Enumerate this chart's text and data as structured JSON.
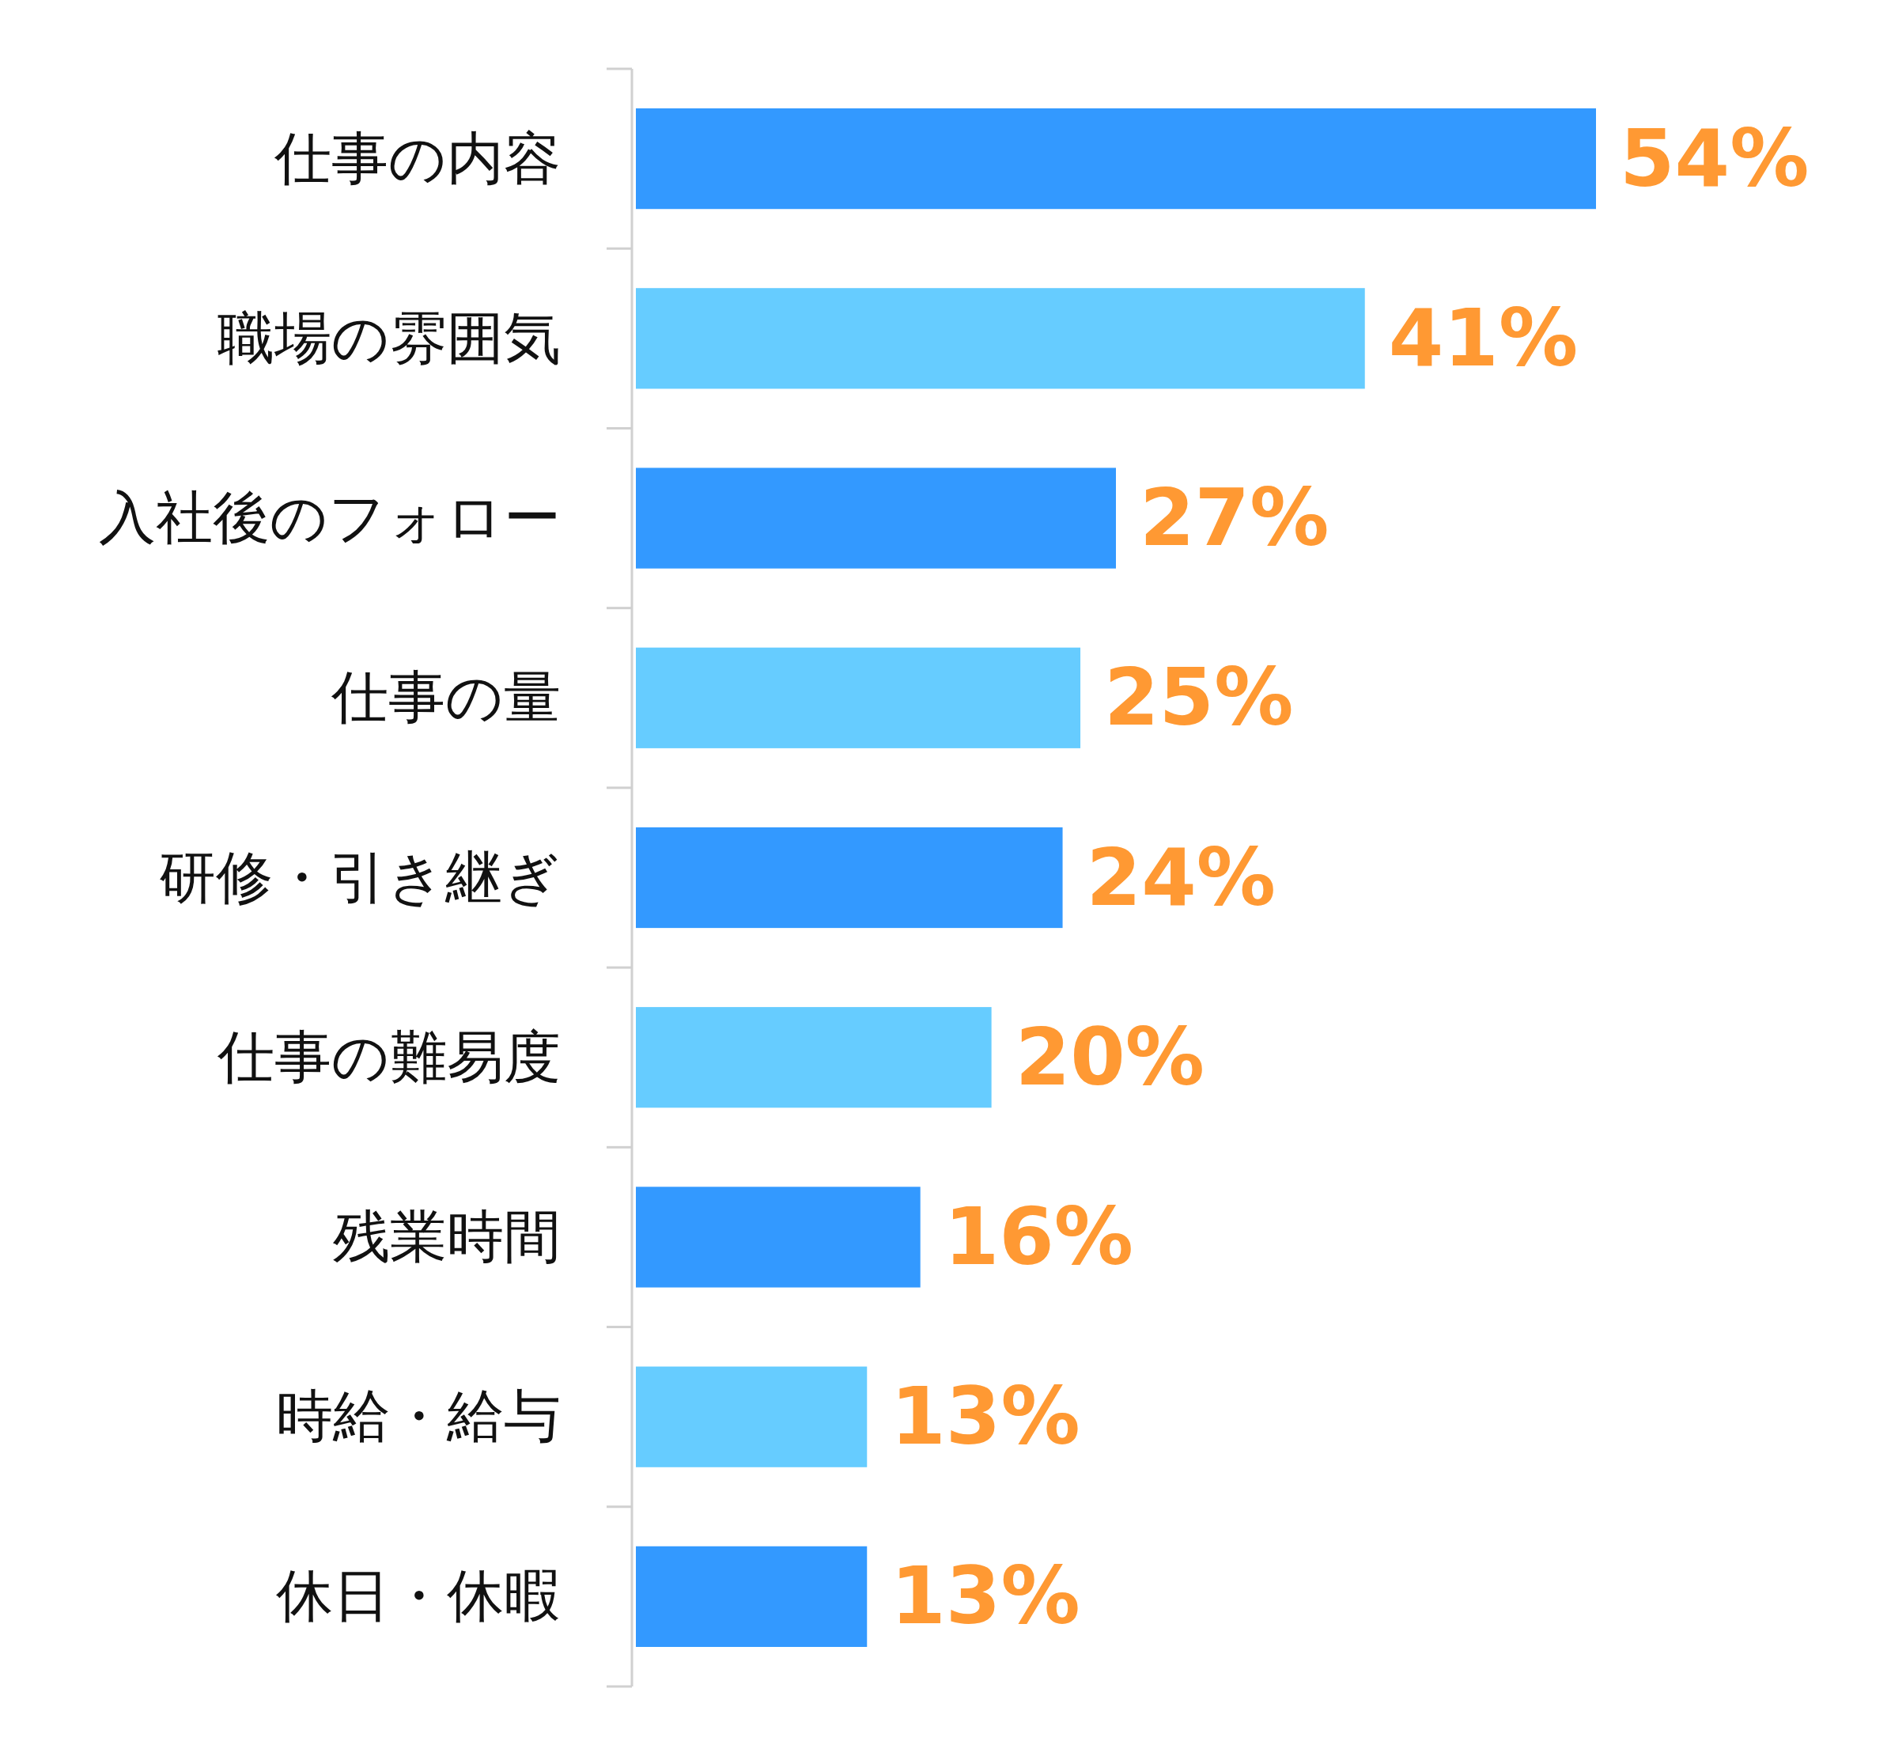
{
  "chart_data": {
    "type": "bar",
    "orientation": "horizontal",
    "categories": [
      "仕事の内容",
      "職場の雰囲気",
      "入社後のフォロー",
      "仕事の量",
      "研修・引き継ぎ",
      "仕事の難易度",
      "残業時間",
      "時給・給与",
      "休日・休暇"
    ],
    "values": [
      54,
      41,
      27,
      25,
      24,
      20,
      16,
      13,
      13
    ],
    "colors": [
      "#3399ff",
      "#66ccff",
      "#3399ff",
      "#66ccff",
      "#3399ff",
      "#66ccff",
      "#3399ff",
      "#66ccff",
      "#3399ff"
    ],
    "value_labels": [
      "54%",
      "41%",
      "27%",
      "25%",
      "24%",
      "20%",
      "16%",
      "13%",
      "13%"
    ]
  }
}
